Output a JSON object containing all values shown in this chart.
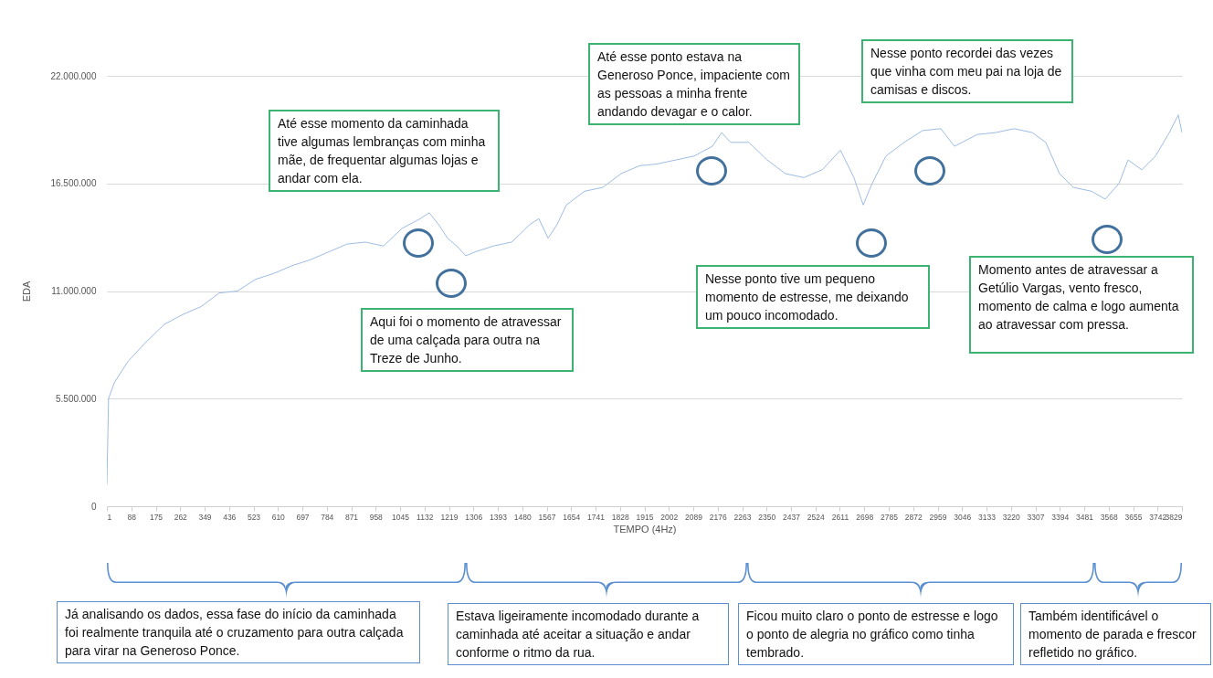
{
  "chart_data": {
    "type": "line",
    "xlabel": "TEMPO (4Hz)",
    "ylabel": "EDA",
    "grid": "y",
    "x": [
      1,
      7,
      27,
      76,
      141,
      206,
      271,
      336,
      401,
      466,
      531,
      596,
      661,
      726,
      791,
      856,
      921,
      986,
      1052,
      1117,
      1149,
      1182,
      1214,
      1247,
      1279,
      1312,
      1377,
      1442,
      1507,
      1539,
      1572,
      1604,
      1637,
      1702,
      1767,
      1832,
      1897,
      1962,
      2027,
      2092,
      2157,
      2190,
      2222,
      2287,
      2352,
      2417,
      2483,
      2548,
      2613,
      2661,
      2694,
      2726,
      2775,
      2840,
      2905,
      2970,
      3019,
      3100,
      3166,
      3231,
      3296,
      3344,
      3393,
      3442,
      3507,
      3556,
      3605,
      3637,
      3686,
      3735,
      3784,
      3816,
      3829
    ],
    "series": [
      {
        "color": "#9dbde3",
        "values": [
          1100000,
          5500000,
          6300000,
          7400000,
          8400000,
          9300000,
          9800000,
          10200000,
          10900000,
          11000000,
          11600000,
          11900000,
          12300000,
          12600000,
          13000000,
          13400000,
          13500000,
          13300000,
          14200000,
          14700000,
          15000000,
          14400000,
          13700000,
          13300000,
          12800000,
          13000000,
          13300000,
          13500000,
          14400000,
          14700000,
          13700000,
          14400000,
          15400000,
          16100000,
          16300000,
          17000000,
          17400000,
          17500000,
          17700000,
          17900000,
          18400000,
          19100000,
          18600000,
          18600000,
          17700000,
          17000000,
          16800000,
          17200000,
          18200000,
          16800000,
          15400000,
          16500000,
          17900000,
          18600000,
          19200000,
          19300000,
          18400000,
          19000000,
          19100000,
          19300000,
          19100000,
          18600000,
          17000000,
          16300000,
          16100000,
          15700000,
          16500000,
          17700000,
          17200000,
          17900000,
          19100000,
          20000000,
          19100000
        ]
      }
    ],
    "xlim": [
      1,
      3829
    ],
    "xticks": [
      1,
      88,
      175,
      262,
      349,
      436,
      523,
      610,
      697,
      784,
      871,
      958,
      1045,
      1132,
      1219,
      1306,
      1393,
      1480,
      1567,
      1654,
      1741,
      1828,
      1915,
      2002,
      2089,
      2176,
      2263,
      2350,
      2437,
      2524,
      2611,
      2698,
      2785,
      2872,
      2959,
      3046,
      3133,
      3220,
      3307,
      3394,
      3481,
      3568,
      3655,
      3742,
      3829
    ],
    "ylim": [
      0,
      22000000
    ],
    "yticks": [
      {
        "value": 0,
        "label": "0"
      },
      {
        "value": 5500000,
        "label": "5.500.000"
      },
      {
        "value": 11000000,
        "label": "11.000.000"
      },
      {
        "value": 16500000,
        "label": "16.500.000"
      },
      {
        "value": 22000000,
        "label": "22.000.000"
      }
    ],
    "annotations": [
      "Até esse momento da caminhada tive algumas lembranças com minha mãe, de frequentar algumas lojas e andar com ela.",
      "Aqui foi o momento de atravessar de uma calçada para outra na Treze de Junho.",
      "Até esse ponto estava na Generoso Ponce, impaciente com as pessoas a minha frente andando devagar e o calor.",
      "Nesse ponto recordei das vezes que vinha com meu pai na loja de camisas e discos.",
      "Nesse ponto tive um pequeno momento de estresse, me deixando um pouco incomodado.",
      "Momento antes de atravessar a Getúlio Vargas, vento fresco, momento de calma e logo aumenta ao atravessar com pressa.",
      "Já analisando os dados, essa fase do início da caminhada foi realmente tranquila até o cruzamento para outra calçada para virar na Generoso Ponce.",
      "Estava ligeiramente incomodado durante a caminhada até aceitar a situação e andar conforme o ritmo da rua.",
      "Ficou muito claro o ponto de estresse e logo o ponto de alegria no gráfico como tinha tembrado.",
      "Também identificável o momento de parada e frescor refletido no gráfico."
    ]
  }
}
